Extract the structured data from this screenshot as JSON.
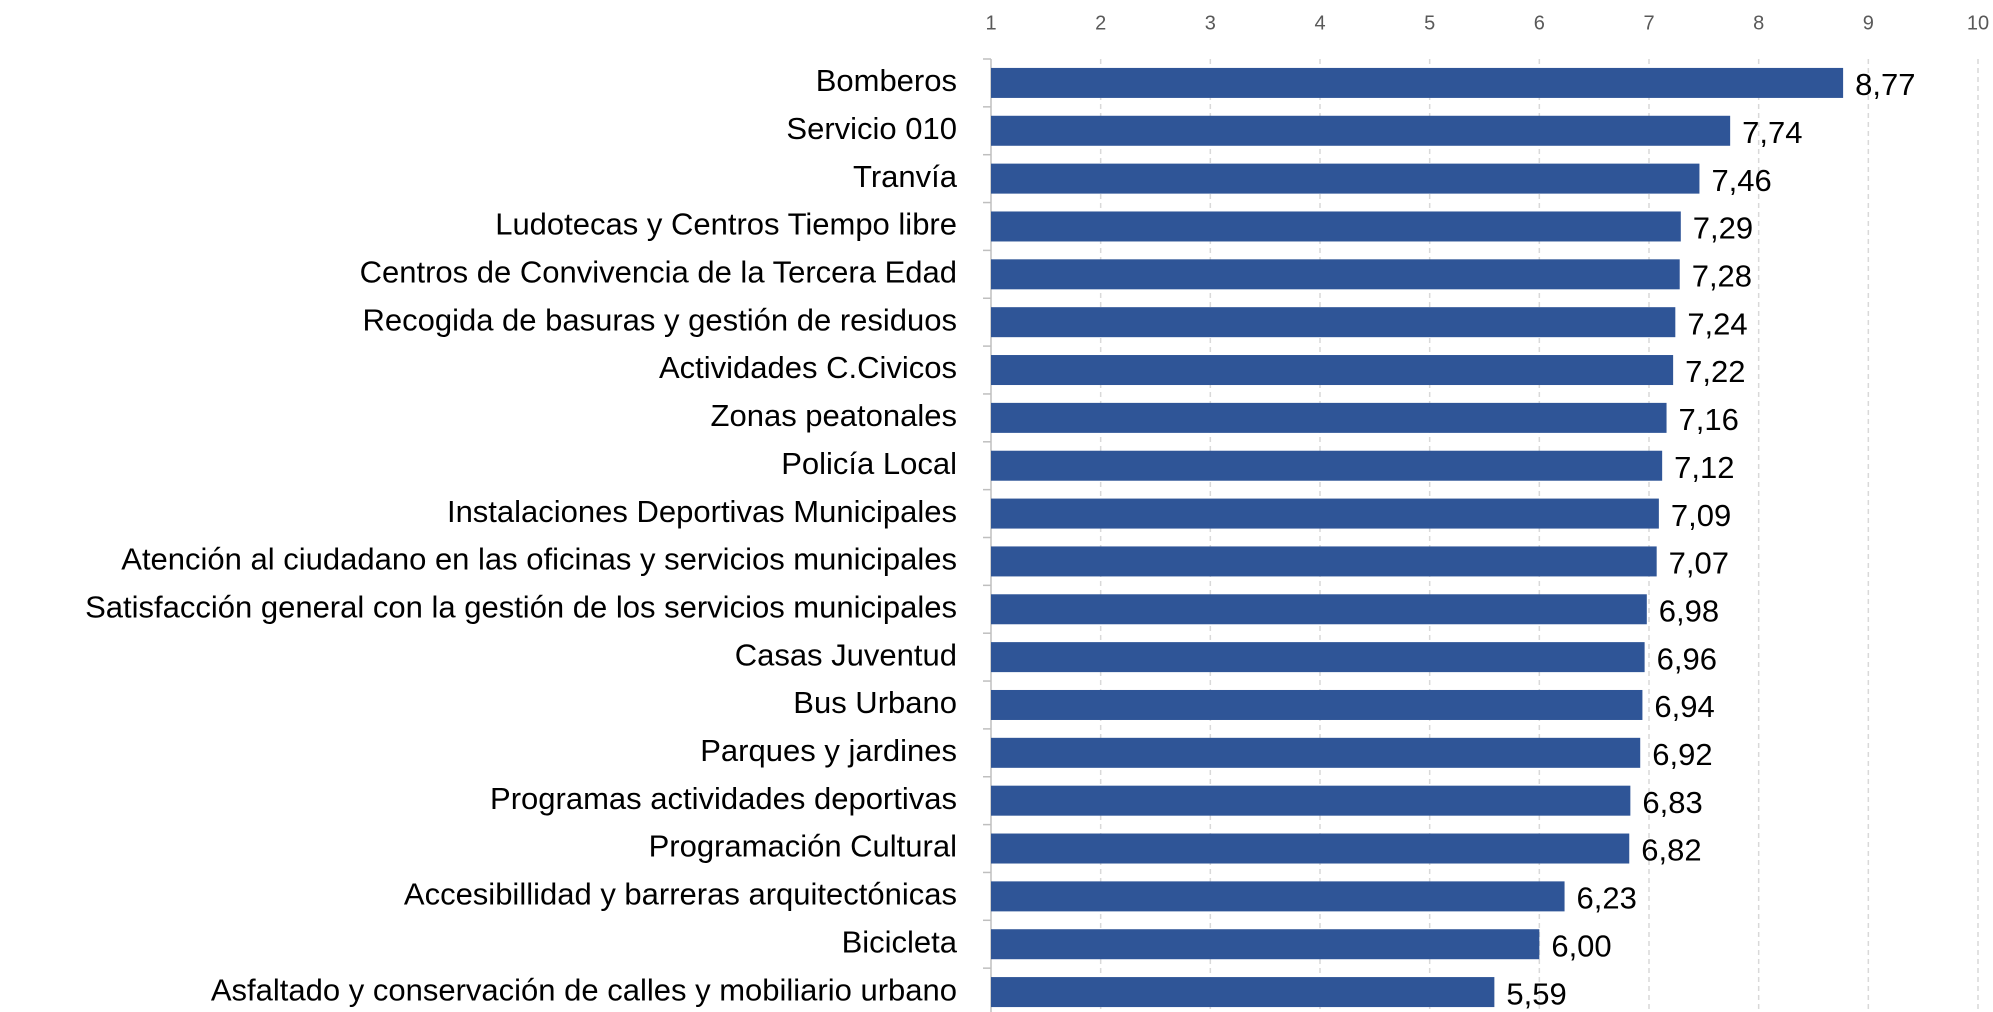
{
  "chart_data": {
    "type": "bar",
    "orientation": "horizontal",
    "categories": [
      "Bomberos",
      "Servicio 010",
      "Tranvía",
      "Ludotecas y Centros Tiempo libre",
      "Centros de Convivencia de la Tercera Edad",
      "Recogida de basuras y gestión de residuos",
      "Actividades C.Civicos",
      "Zonas peatonales",
      "Policía Local",
      "Instalaciones Deportivas Municipales",
      "Atención al ciudadano en las oficinas y servicios municipales",
      "Satisfacción general con la gestión de los servicios municipales",
      "Casas Juventud",
      "Bus Urbano",
      "Parques y jardines",
      "Programas actividades deportivas",
      "Programación Cultural",
      "Accesibillidad y barreras arquitectónicas",
      "Bicicleta",
      "Asfaltado y conservación de calles y mobiliario urbano"
    ],
    "values": [
      8.77,
      7.74,
      7.46,
      7.29,
      7.28,
      7.24,
      7.22,
      7.16,
      7.12,
      7.09,
      7.07,
      6.98,
      6.96,
      6.94,
      6.92,
      6.83,
      6.82,
      6.23,
      6.0,
      5.59
    ],
    "value_labels": [
      "8,77",
      "7,74",
      "7,46",
      "7,29",
      "7,28",
      "7,24",
      "7,22",
      "7,16",
      "7,12",
      "7,09",
      "7,07",
      "6,98",
      "6,96",
      "6,94",
      "6,92",
      "6,83",
      "6,82",
      "6,23",
      "6,00",
      "5,59"
    ],
    "color": "#2f5597",
    "xlim": [
      1,
      10
    ],
    "xticks": [
      1,
      2,
      3,
      4,
      5,
      6,
      7,
      8,
      9,
      10
    ],
    "grid": true
  }
}
